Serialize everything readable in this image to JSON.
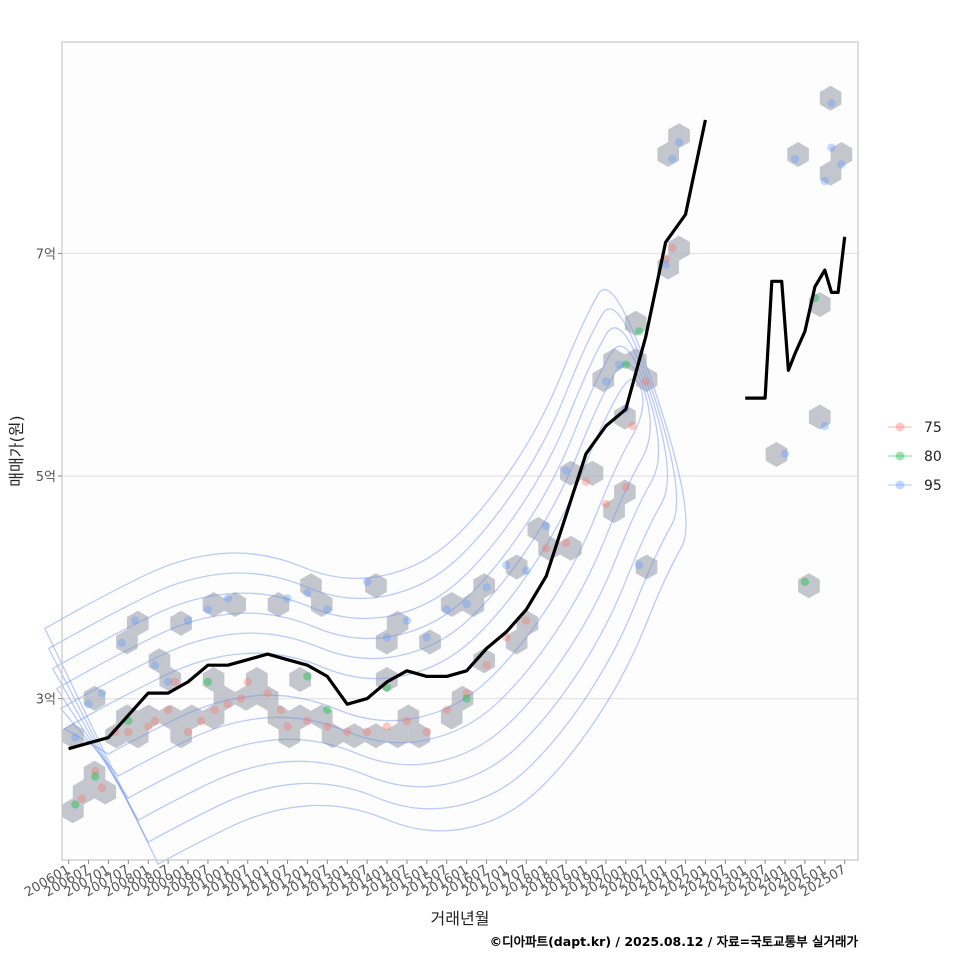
{
  "chart_data": {
    "type": "scatter",
    "xlabel": "거래년월",
    "ylabel": "매매가(원)",
    "x_tick_labels": [
      "200601",
      "200607",
      "200701",
      "200707",
      "200801",
      "200807",
      "200901",
      "200907",
      "201001",
      "201007",
      "201101",
      "201107",
      "201201",
      "201207",
      "201301",
      "201307",
      "201401",
      "201407",
      "201501",
      "201507",
      "201601",
      "201607",
      "201701",
      "201707",
      "201801",
      "201807",
      "201901",
      "201907",
      "202001",
      "202007",
      "202101",
      "202107",
      "202201",
      "202207",
      "202301",
      "202307",
      "202401",
      "202407",
      "202501",
      "202507"
    ],
    "xlim": [
      "2005-11",
      "2025-11"
    ],
    "y_ticks": [
      {
        "value": 30000,
        "label": "3억"
      },
      {
        "value": 50000,
        "label": "5억"
      },
      {
        "value": 70000,
        "label": "7억"
      }
    ],
    "ylim": [
      15500,
      89000
    ],
    "y_unit": "만원",
    "grid": "horizontal major lines",
    "legend": {
      "position": "right",
      "entries": [
        {
          "label": "75",
          "color": "#F8766D"
        },
        {
          "label": "80",
          "color": "#00BA38"
        },
        {
          "label": "95",
          "color": "#619CFF"
        }
      ]
    },
    "series": [
      {
        "name": "75",
        "color": "#F8766D",
        "points": [
          [
            "2006-05",
            21000
          ],
          [
            "2006-09",
            23500
          ],
          [
            "2006-11",
            22000
          ],
          [
            "2007-03",
            27000
          ],
          [
            "2007-07",
            27000
          ],
          [
            "2008-01",
            27500
          ],
          [
            "2008-03",
            28000
          ],
          [
            "2008-07",
            29000
          ],
          [
            "2008-09",
            31500
          ],
          [
            "2009-01",
            27000
          ],
          [
            "2009-05",
            28000
          ],
          [
            "2009-09",
            29000
          ],
          [
            "2010-01",
            29500
          ],
          [
            "2010-05",
            30000
          ],
          [
            "2010-07",
            31500
          ],
          [
            "2011-01",
            30500
          ],
          [
            "2011-05",
            29000
          ],
          [
            "2011-07",
            27500
          ],
          [
            "2012-01",
            28000
          ],
          [
            "2012-07",
            27500
          ],
          [
            "2013-01",
            27000
          ],
          [
            "2013-07",
            27000
          ],
          [
            "2014-01",
            27500
          ],
          [
            "2014-07",
            28000
          ],
          [
            "2015-01",
            27000
          ],
          [
            "2015-07",
            29000
          ],
          [
            "2016-01",
            30500
          ],
          [
            "2016-07",
            33000
          ],
          [
            "2017-01",
            35500
          ],
          [
            "2017-07",
            37000
          ],
          [
            "2018-01",
            43500
          ],
          [
            "2018-07",
            44000
          ],
          [
            "2019-01",
            49500
          ],
          [
            "2019-07",
            47500
          ],
          [
            "2020-01",
            49000
          ],
          [
            "2020-03",
            54500
          ],
          [
            "2020-07",
            58500
          ],
          [
            "2021-01",
            69500
          ],
          [
            "2021-03",
            70500
          ]
        ]
      },
      {
        "name": "80",
        "color": "#00BA38",
        "points": [
          [
            "2006-03",
            20500
          ],
          [
            "2006-09",
            23000
          ],
          [
            "2007-07",
            28000
          ],
          [
            "2009-07",
            31500
          ],
          [
            "2012-01",
            32000
          ],
          [
            "2012-07",
            29000
          ],
          [
            "2014-01",
            31000
          ],
          [
            "2016-01",
            30000
          ],
          [
            "2020-01",
            60000
          ],
          [
            "2020-05",
            63000
          ],
          [
            "2024-10",
            66000
          ],
          [
            "2024-07",
            40500
          ]
        ]
      },
      {
        "name": "95",
        "color": "#619CFF",
        "points": [
          [
            "2006-03",
            26500
          ],
          [
            "2006-07",
            29500
          ],
          [
            "2006-11",
            30500
          ],
          [
            "2007-05",
            35000
          ],
          [
            "2007-09",
            37000
          ],
          [
            "2008-03",
            33000
          ],
          [
            "2008-07",
            31500
          ],
          [
            "2009-01",
            37000
          ],
          [
            "2009-07",
            38000
          ],
          [
            "2010-01",
            39000
          ],
          [
            "2011-07",
            39000
          ],
          [
            "2012-01",
            39500
          ],
          [
            "2012-07",
            38000
          ],
          [
            "2013-07",
            40500
          ],
          [
            "2014-01",
            35500
          ],
          [
            "2014-07",
            37000
          ],
          [
            "2015-01",
            35500
          ],
          [
            "2015-07",
            38000
          ],
          [
            "2016-01",
            38500
          ],
          [
            "2016-07",
            40000
          ],
          [
            "2017-01",
            42000
          ],
          [
            "2017-07",
            41500
          ],
          [
            "2018-01",
            45500
          ],
          [
            "2018-07",
            50500
          ],
          [
            "2019-07",
            58500
          ],
          [
            "2019-11",
            60000
          ],
          [
            "2020-01",
            56000
          ],
          [
            "2020-05",
            42000
          ],
          [
            "2021-01",
            69000
          ],
          [
            "2021-03",
            78500
          ],
          [
            "2021-05",
            80000
          ],
          [
            "2024-01",
            52000
          ],
          [
            "2024-04",
            78500
          ],
          [
            "2025-03",
            79500
          ],
          [
            "2025-01",
            76500
          ],
          [
            "2025-01",
            54500
          ],
          [
            "2025-03",
            83500
          ],
          [
            "2025-06",
            78000
          ]
        ]
      }
    ],
    "trend_line": {
      "color": "#000000",
      "segments": [
        [
          [
            "2006-01",
            25500
          ],
          [
            "2006-07",
            26000
          ],
          [
            "2007-01",
            26500
          ],
          [
            "2007-07",
            28500
          ],
          [
            "2008-01",
            30500
          ],
          [
            "2008-07",
            30500
          ],
          [
            "2009-01",
            31500
          ],
          [
            "2009-07",
            33000
          ],
          [
            "2010-01",
            33000
          ],
          [
            "2010-07",
            33500
          ],
          [
            "2011-01",
            34000
          ],
          [
            "2011-07",
            33500
          ],
          [
            "2012-01",
            33000
          ],
          [
            "2012-07",
            32000
          ],
          [
            "2013-01",
            29500
          ],
          [
            "2013-07",
            30000
          ],
          [
            "2014-01",
            31500
          ],
          [
            "2014-07",
            32500
          ],
          [
            "2015-01",
            32000
          ],
          [
            "2015-07",
            32000
          ],
          [
            "2016-01",
            32500
          ],
          [
            "2016-07",
            34500
          ],
          [
            "2017-01",
            36000
          ],
          [
            "2017-07",
            38000
          ],
          [
            "2018-01",
            41000
          ],
          [
            "2018-07",
            46500
          ],
          [
            "2019-01",
            52000
          ],
          [
            "2019-07",
            54500
          ],
          [
            "2020-01",
            56000
          ],
          [
            "2020-07",
            62500
          ],
          [
            "2021-01",
            71000
          ],
          [
            "2021-07",
            73500
          ],
          [
            "2022-01",
            82000
          ]
        ],
        [
          [
            "2023-01",
            57000
          ],
          [
            "2023-07",
            57000
          ],
          [
            "2023-09",
            67500
          ],
          [
            "2023-12",
            67500
          ],
          [
            "2024-02",
            59500
          ],
          [
            "2024-04",
            61000
          ],
          [
            "2024-07",
            63000
          ],
          [
            "2024-10",
            67000
          ],
          [
            "2025-01",
            68500
          ],
          [
            "2025-03",
            66500
          ],
          [
            "2025-05",
            66500
          ],
          [
            "2025-07",
            71500
          ]
        ]
      ]
    },
    "density_contours": {
      "color": "#6B8FE8",
      "levels": 6
    },
    "hexbin_color": "#A9AFB8"
  },
  "caption": "©디아파트(dapt.kr) / 2025.08.12 / 자료=국토교통부 실거래가"
}
